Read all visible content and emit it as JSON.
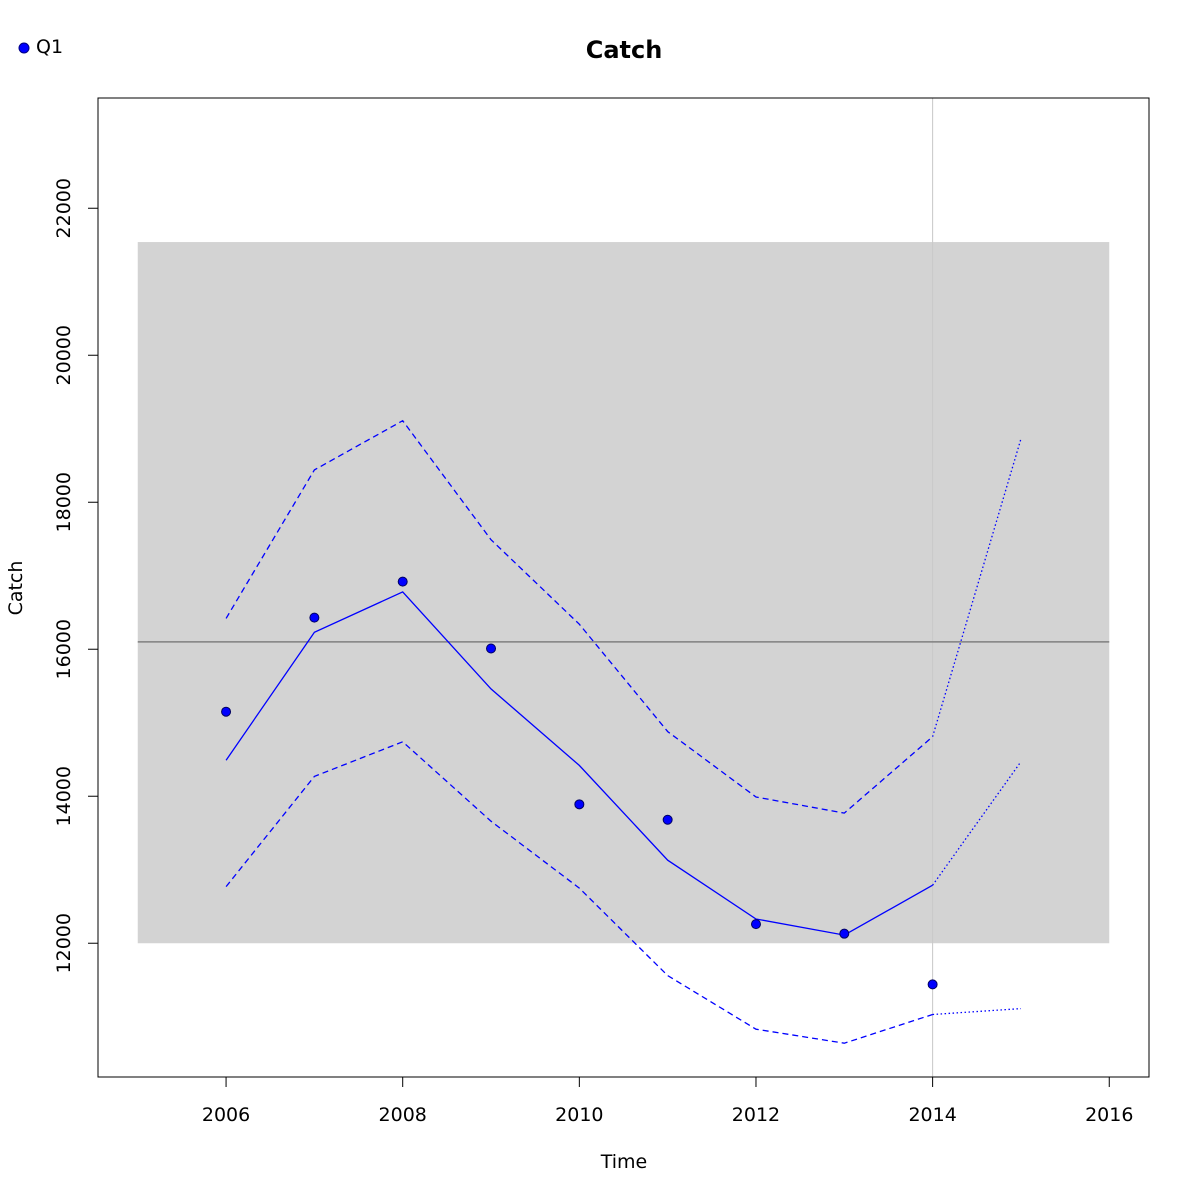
{
  "chart_data": {
    "type": "line",
    "title": "Catch",
    "xlabel": "Time",
    "ylabel": "Catch",
    "xlim": [
      2004.55,
      2016.45
    ],
    "ylim": [
      10180,
      23500
    ],
    "x_ticks": [
      2006,
      2008,
      2010,
      2012,
      2014,
      2016
    ],
    "y_ticks": [
      12000,
      14000,
      16000,
      18000,
      20000,
      22000
    ],
    "legend": {
      "position": "top-left",
      "entries": [
        {
          "label": "Q1",
          "color": "#0000ff",
          "marker": "filled-circle"
        }
      ]
    },
    "reference_band": {
      "x": [
        2005,
        2016
      ],
      "y": [
        12000,
        21540
      ],
      "color": "#d3d3d3"
    },
    "reference_hline": {
      "y": 16100,
      "color": "#808080"
    },
    "reference_vline": {
      "x": 2014,
      "color": "#c8c8c8"
    },
    "series": [
      {
        "name": "Q1",
        "kind": "points",
        "color": "#0000ff",
        "x": [
          2006,
          2007,
          2008,
          2009,
          2010,
          2011,
          2012,
          2013,
          2014
        ],
        "y": [
          15150,
          16430,
          16920,
          16010,
          13890,
          13680,
          12260,
          12130,
          11440
        ]
      },
      {
        "kind": "fit",
        "style": "solid",
        "color": "#0000ff",
        "x": [
          2006,
          2007,
          2008,
          2009,
          2010,
          2011,
          2012,
          2013,
          2014
        ],
        "y": [
          14490,
          16230,
          16780,
          15460,
          14420,
          13130,
          12330,
          12110,
          12790
        ]
      },
      {
        "kind": "upper",
        "style": "dashed",
        "color": "#0000ff",
        "x": [
          2006,
          2007,
          2008,
          2009,
          2010,
          2011,
          2012,
          2013,
          2014
        ],
        "y": [
          16420,
          18440,
          19110,
          17490,
          16340,
          14880,
          13990,
          13770,
          14810
        ]
      },
      {
        "kind": "lower",
        "style": "dashed",
        "color": "#0000ff",
        "x": [
          2006,
          2007,
          2008,
          2009,
          2010,
          2011,
          2012,
          2013,
          2014
        ],
        "y": [
          12770,
          14270,
          14740,
          13660,
          12750,
          11560,
          10830,
          10640,
          11030
        ]
      },
      {
        "kind": "forecast",
        "style": "dotted",
        "color": "#0000ff",
        "x": [
          2014,
          2015
        ],
        "y": [
          12790,
          14470
        ]
      },
      {
        "kind": "forecast-upper",
        "style": "dotted",
        "color": "#0000ff",
        "x": [
          2014,
          2015
        ],
        "y": [
          14810,
          18860
        ]
      },
      {
        "kind": "forecast-lower",
        "style": "dotted",
        "color": "#0000ff",
        "x": [
          2014,
          2015
        ],
        "y": [
          11030,
          11110
        ]
      }
    ]
  }
}
